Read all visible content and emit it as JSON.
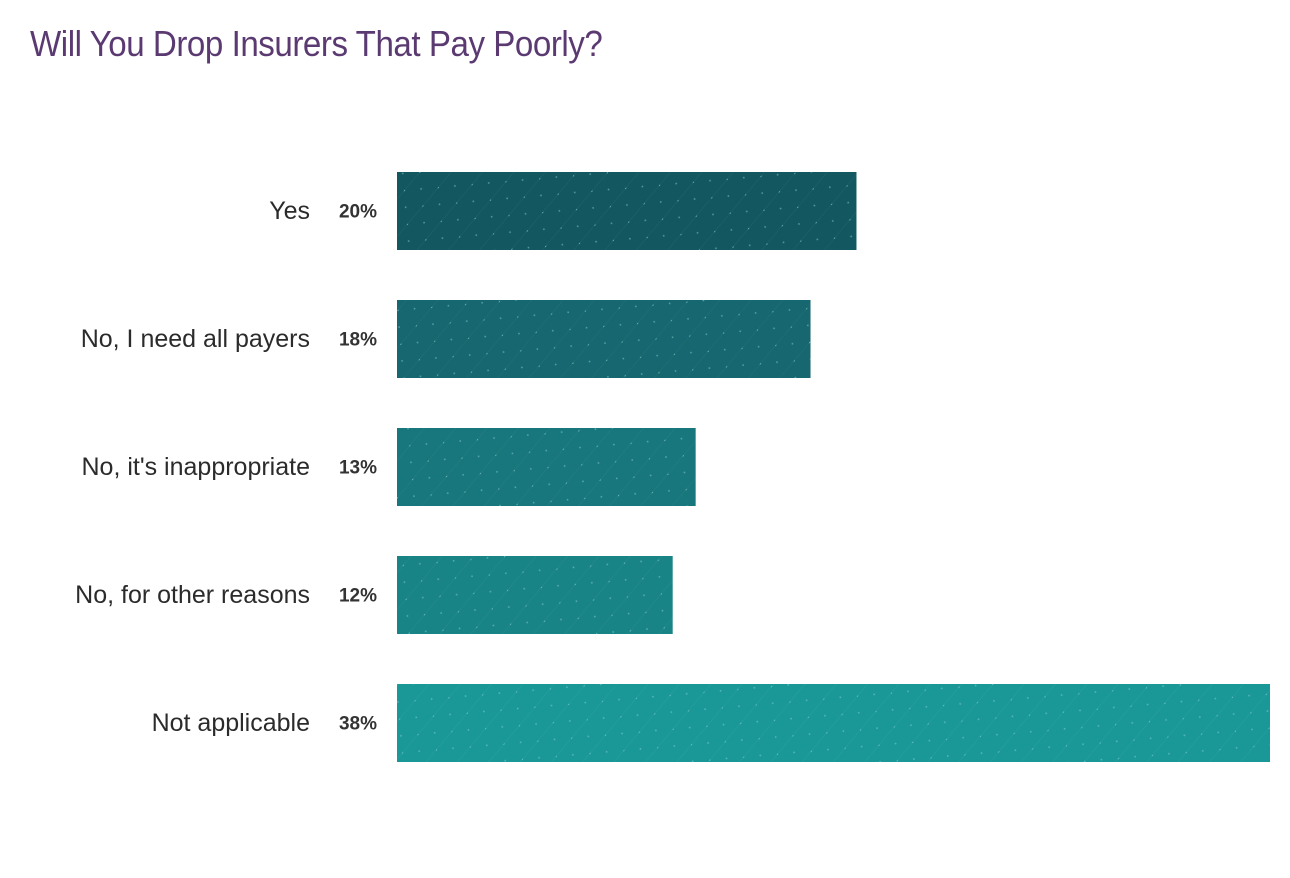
{
  "chart_data": {
    "type": "bar",
    "orientation": "horizontal",
    "title": "Will You Drop Insurers That Pay Poorly?",
    "categories": [
      "Yes",
      "No, I need all payers",
      "No, it's inappropriate",
      "No, for other reasons",
      "Not applicable"
    ],
    "values": [
      20,
      18,
      13,
      12,
      38
    ],
    "value_labels": [
      "20%",
      "18%",
      "13%",
      "12%",
      "38%"
    ],
    "unit": "%",
    "xlim": [
      0,
      38
    ],
    "grid": false,
    "legend": "none"
  },
  "colors": {
    "title": "#5b3a72",
    "bars": [
      "#135861",
      "#16676f",
      "#18777c",
      "#198486",
      "#1a9898"
    ],
    "bar_pattern_dots": "#8fd0cf"
  }
}
